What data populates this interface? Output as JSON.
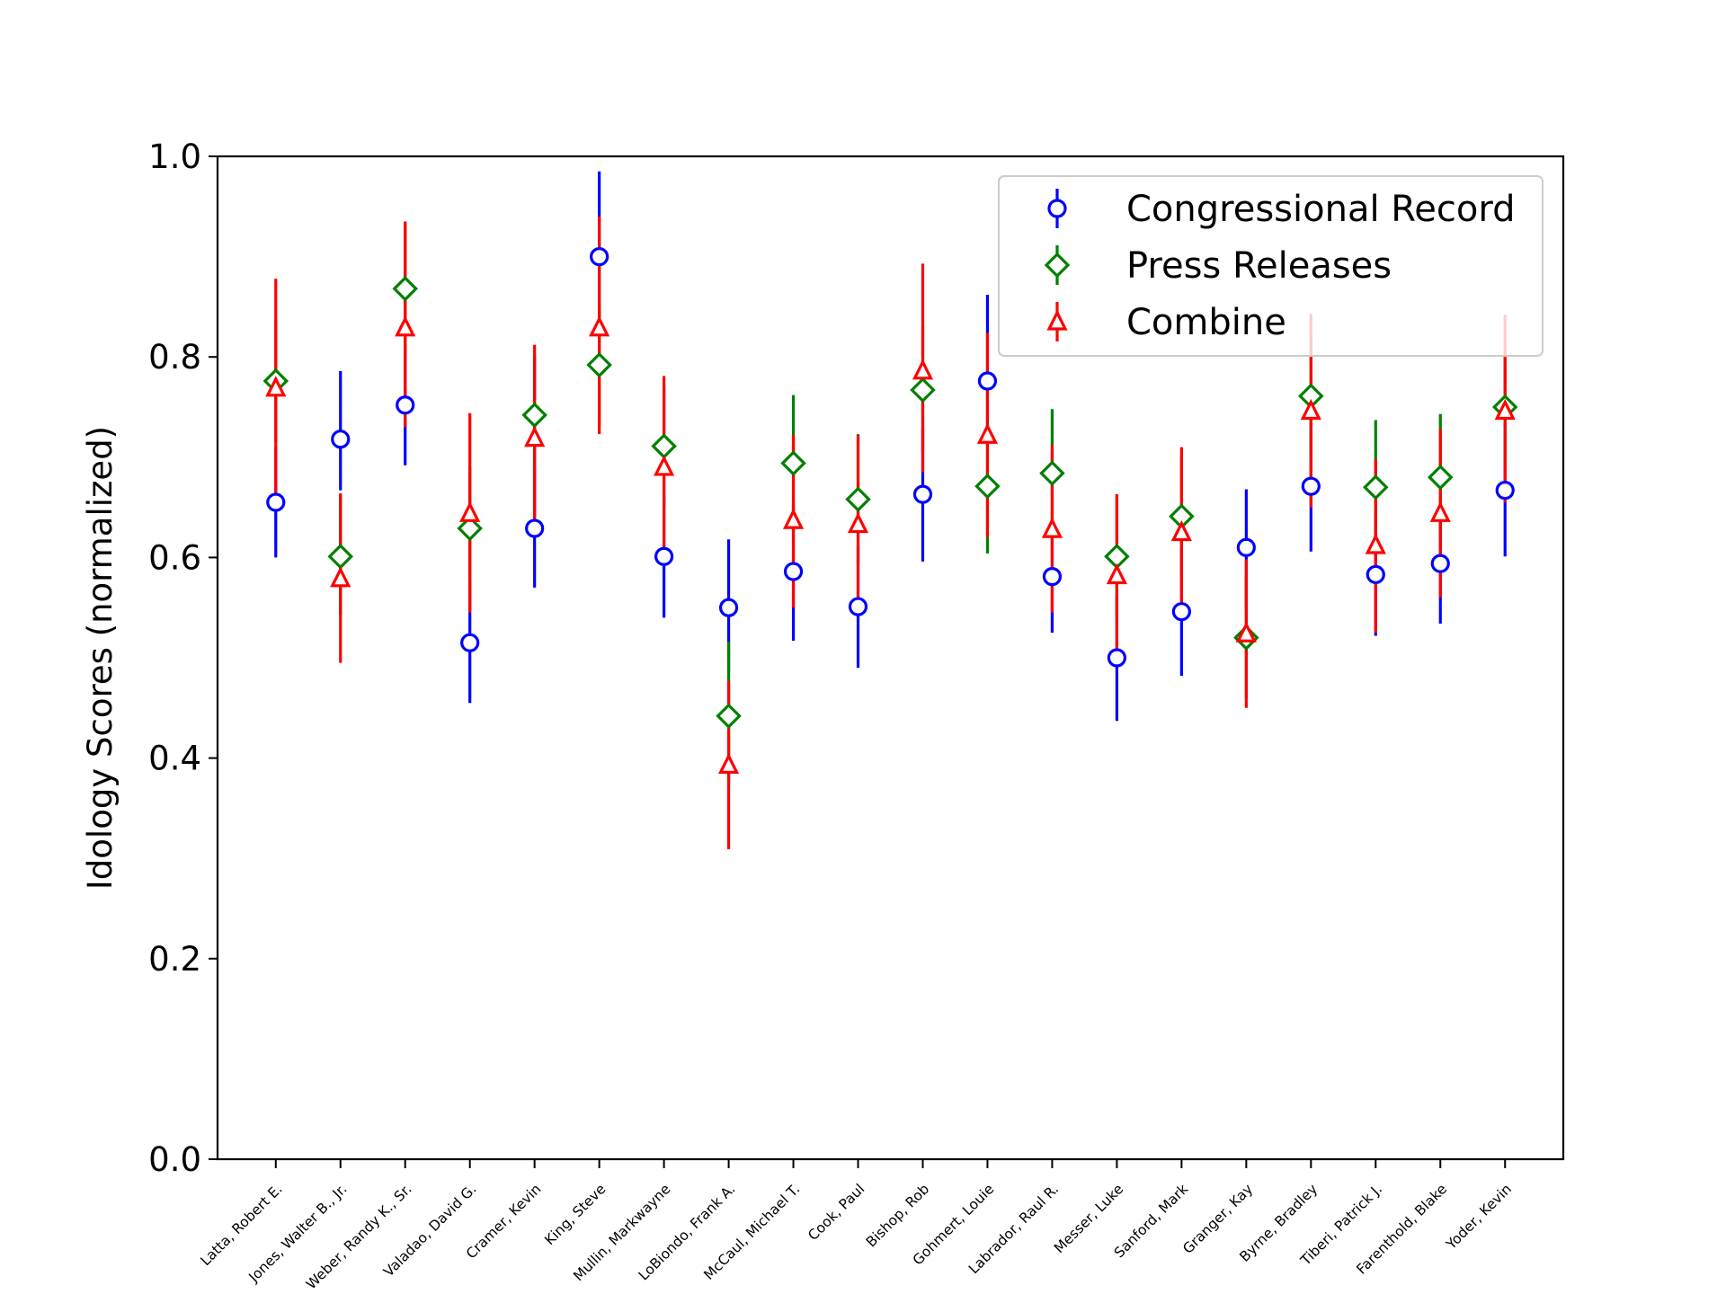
{
  "chart_data": {
    "type": "scatter",
    "ylabel": "Idology Scores (normalized)",
    "xlabel": "",
    "ylim": [
      0.0,
      1.0
    ],
    "yticks": [
      "0.0",
      "0.2",
      "0.4",
      "0.6",
      "0.8",
      "1.0"
    ],
    "grid": false,
    "legend_position": "top-right",
    "categories": [
      "Latta, Robert E.",
      "Jones, Walter B., Jr.",
      "Weber, Randy K., Sr.",
      "Valadao, David G.",
      "Cramer, Kevin",
      "King, Steve",
      "Mullin, Markwayne",
      "LoBiondo, Frank A.",
      "McCaul, Michael T.",
      "Cook, Paul",
      "Bishop, Rob",
      "Gohmert, Louie",
      "Labrador, Raul R.",
      "Messer, Luke",
      "Sanford, Mark",
      "Granger, Kay",
      "Byrne, Bradley",
      "Tiberi, Patrick J.",
      "Farenthold, Blake",
      "Yoder, Kevin"
    ],
    "series": [
      {
        "name": "Congressional Record",
        "color": "#0000ff",
        "marker": "circle",
        "values": [
          0.655,
          0.718,
          0.752,
          0.515,
          0.629,
          0.9,
          0.601,
          0.55,
          0.586,
          0.551,
          0.663,
          0.776,
          0.581,
          0.5,
          0.546,
          0.61,
          0.671,
          0.583,
          0.594,
          0.667
        ],
        "err_low": [
          0.6,
          0.667,
          0.692,
          0.455,
          0.57,
          0.84,
          0.54,
          0.485,
          0.517,
          0.49,
          0.596,
          0.714,
          0.525,
          0.437,
          0.482,
          0.548,
          0.606,
          0.522,
          0.534,
          0.601
        ],
        "err_high": [
          0.71,
          0.786,
          0.812,
          0.575,
          0.69,
          0.985,
          0.662,
          0.618,
          0.655,
          0.612,
          0.73,
          0.862,
          0.637,
          0.563,
          0.61,
          0.668,
          0.736,
          0.644,
          0.654,
          0.733
        ]
      },
      {
        "name": "Press Releases",
        "color": "#008000",
        "marker": "diamond",
        "values": [
          0.776,
          0.601,
          0.868,
          0.629,
          0.742,
          0.792,
          0.711,
          0.442,
          0.694,
          0.658,
          0.767,
          0.671,
          0.684,
          0.601,
          0.641,
          0.52,
          0.761,
          0.67,
          0.68,
          0.75
        ],
        "err_low": [
          0.715,
          0.543,
          0.803,
          0.568,
          0.685,
          0.732,
          0.65,
          0.373,
          0.626,
          0.593,
          0.705,
          0.604,
          0.625,
          0.54,
          0.58,
          0.46,
          0.7,
          0.602,
          0.618,
          0.692
        ],
        "err_high": [
          0.837,
          0.662,
          0.935,
          0.69,
          0.8,
          0.852,
          0.772,
          0.516,
          0.762,
          0.723,
          0.83,
          0.738,
          0.748,
          0.663,
          0.702,
          0.58,
          0.822,
          0.737,
          0.743,
          0.81
        ]
      },
      {
        "name": "Combine",
        "color": "#ff0000",
        "marker": "triangle",
        "values": [
          0.769,
          0.579,
          0.829,
          0.644,
          0.719,
          0.829,
          0.69,
          0.393,
          0.637,
          0.633,
          0.786,
          0.722,
          0.628,
          0.582,
          0.625,
          0.524,
          0.746,
          0.612,
          0.644,
          0.746
        ],
        "err_low": [
          0.662,
          0.495,
          0.73,
          0.545,
          0.627,
          0.723,
          0.598,
          0.309,
          0.55,
          0.545,
          0.685,
          0.62,
          0.545,
          0.5,
          0.54,
          0.45,
          0.65,
          0.525,
          0.56,
          0.655
        ],
        "err_high": [
          0.878,
          0.664,
          0.935,
          0.744,
          0.812,
          0.94,
          0.781,
          0.477,
          0.722,
          0.722,
          0.893,
          0.824,
          0.712,
          0.663,
          0.71,
          0.598,
          0.843,
          0.698,
          0.728,
          0.842
        ]
      }
    ]
  }
}
